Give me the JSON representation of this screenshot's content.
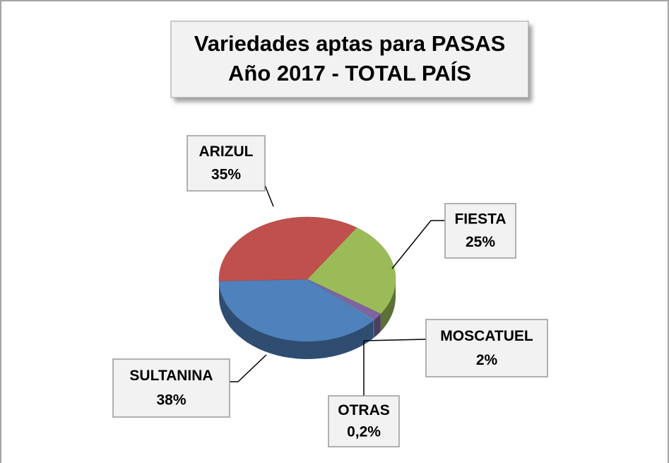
{
  "chart_data": {
    "type": "pie",
    "title": "Variedades aptas para PASAS",
    "subtitle": "Año 2017 - TOTAL PAÍS",
    "categories": [
      "FIESTA",
      "MOSCATUEL",
      "OTRAS",
      "SULTANINA",
      "ARIZUL"
    ],
    "values": [
      25,
      2,
      0.2,
      38,
      35
    ],
    "value_labels": [
      "25%",
      "2%",
      "0,2%",
      "38%",
      "35%"
    ],
    "colors": [
      "#9bbb59",
      "#8064a2",
      "#4bacc6",
      "#4f81bd",
      "#c0504d"
    ]
  }
}
